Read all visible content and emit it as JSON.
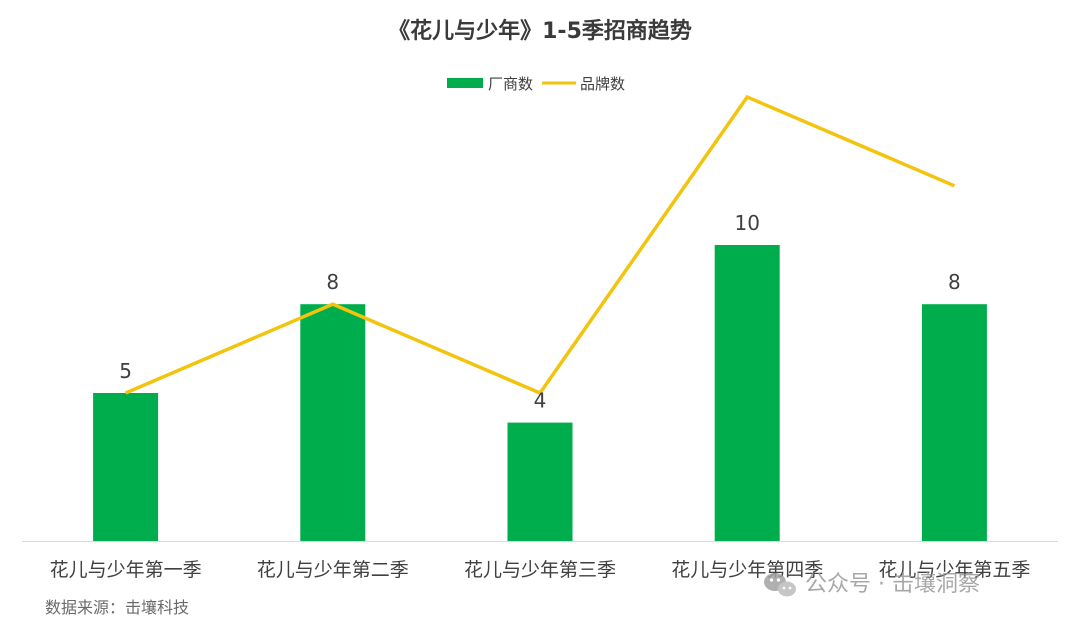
{
  "chart_data": {
    "type": "bar",
    "title": "《花儿与少年》1-5季招商趋势",
    "categories": [
      "花儿与少年第一季",
      "花儿与少年第二季",
      "花儿与少年第三季",
      "花儿与少年第四季",
      "花儿与少年第五季"
    ],
    "series": [
      {
        "name": "厂商数",
        "type": "bar",
        "values": [
          5,
          8,
          4,
          10,
          8
        ],
        "color": "#00ad4d"
      },
      {
        "name": "品牌数",
        "type": "line",
        "values": [
          5,
          8,
          5,
          15,
          12
        ],
        "color": "#f2c40d"
      }
    ],
    "xlabel": "",
    "ylabel": "",
    "ylim": [
      0,
      16
    ],
    "grid": false,
    "legend": "top-center",
    "data_labels_series": "厂商数"
  },
  "footer": {
    "source": "数据来源：击壤科技",
    "watermark": "公众号 · 击壤洞察"
  }
}
